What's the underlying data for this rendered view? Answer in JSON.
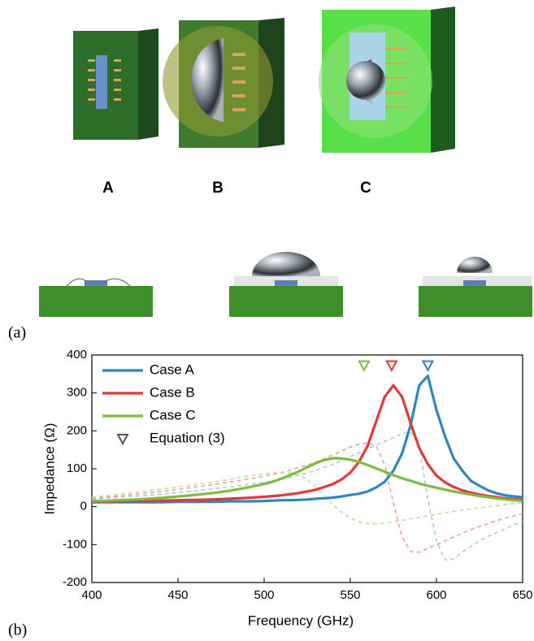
{
  "panel_labels": {
    "a": "(a)",
    "b": "(b)"
  },
  "illustration_labels": [
    "A",
    "B",
    "C"
  ],
  "chart_data": {
    "type": "line",
    "x_label": "Frequency (GHz)",
    "y_label": "Impedance (Ω)",
    "xlim": [
      400,
      650
    ],
    "ylim": [
      -200,
      400
    ],
    "xticks": [
      400,
      450,
      500,
      550,
      600,
      650
    ],
    "yticks": [
      -200,
      -100,
      0,
      100,
      200,
      300,
      400
    ],
    "legend": "upper-left",
    "x": [
      400,
      410,
      420,
      430,
      440,
      450,
      460,
      470,
      480,
      490,
      500,
      505,
      510,
      515,
      520,
      525,
      530,
      535,
      540,
      545,
      550,
      555,
      560,
      565,
      570,
      575,
      580,
      585,
      590,
      595,
      600,
      605,
      610,
      615,
      620,
      625,
      630,
      635,
      640,
      645,
      650
    ],
    "series": [
      {
        "name": "Case A",
        "color": "#2e86c1",
        "dashed": false,
        "values": [
          12,
          12,
          12,
          12,
          12,
          13,
          13,
          13,
          14,
          14,
          15,
          16,
          17,
          17,
          18,
          19,
          21,
          22,
          24,
          27,
          31,
          34,
          40,
          51,
          66,
          95,
          140,
          215,
          320,
          345,
          255,
          185,
          127,
          95,
          68,
          55,
          43,
          35,
          30,
          27,
          25
        ]
      },
      {
        "name": "Case B",
        "color": "#e03a3a",
        "dashed": false,
        "values": [
          14,
          14,
          15,
          15,
          16,
          17,
          18,
          19,
          21,
          23,
          26,
          28,
          30,
          33,
          36,
          40,
          45,
          52,
          60,
          72,
          90,
          118,
          160,
          225,
          290,
          320,
          290,
          220,
          155,
          112,
          82,
          64,
          52,
          43,
          37,
          32,
          28,
          25,
          22,
          20,
          18
        ]
      },
      {
        "name": "Case C",
        "color": "#7cbd3e",
        "dashed": false,
        "values": [
          15,
          16,
          18,
          20,
          23,
          27,
          31,
          36,
          42,
          50,
          60,
          66,
          74,
          83,
          93,
          104,
          115,
          123,
          128,
          127,
          124,
          118,
          110,
          101,
          92,
          83,
          75,
          68,
          61,
          55,
          50,
          45,
          40,
          36,
          32,
          28,
          25,
          22,
          19,
          17,
          15
        ]
      },
      {
        "color": "#a9c9e6",
        "dashed": true,
        "values": [
          20,
          23,
          26,
          29,
          33,
          37,
          42,
          47,
          52,
          58,
          64,
          68,
          72,
          77,
          83,
          89,
          96,
          104,
          112,
          122,
          132,
          142,
          152,
          162,
          172,
          182,
          192,
          198,
          160,
          20,
          -90,
          -140,
          -138,
          -120,
          -105,
          -90,
          -78,
          -68,
          -58,
          -48,
          -40
        ]
      },
      {
        "color": "#f0a0a0",
        "dashed": true,
        "values": [
          22,
          26,
          30,
          35,
          40,
          46,
          52,
          58,
          65,
          72,
          80,
          85,
          90,
          96,
          103,
          110,
          118,
          127,
          137,
          147,
          157,
          165,
          168,
          160,
          110,
          10,
          -80,
          -118,
          -120,
          -110,
          -100,
          -90,
          -80,
          -70,
          -60,
          -52,
          -45,
          -37,
          -30,
          -24,
          -18
        ]
      },
      {
        "color": "#bfe0a0",
        "dashed": true,
        "values": [
          25,
          30,
          35,
          40,
          46,
          52,
          58,
          65,
          72,
          80,
          86,
          89,
          90,
          89,
          84,
          72,
          52,
          28,
          5,
          -15,
          -30,
          -40,
          -45,
          -45,
          -43,
          -40,
          -36,
          -32,
          -28,
          -24,
          -20,
          -16,
          -12,
          -9,
          -6,
          -3,
          0,
          3,
          6,
          8,
          10
        ]
      }
    ],
    "markers": {
      "name": "Equation (3)",
      "legend_color": "#555555",
      "x": [
        558,
        574,
        595
      ],
      "y": [
        373,
        373,
        373
      ],
      "colors": [
        "#7cbd3e",
        "#e03a3a",
        "#2e86c1"
      ]
    }
  }
}
